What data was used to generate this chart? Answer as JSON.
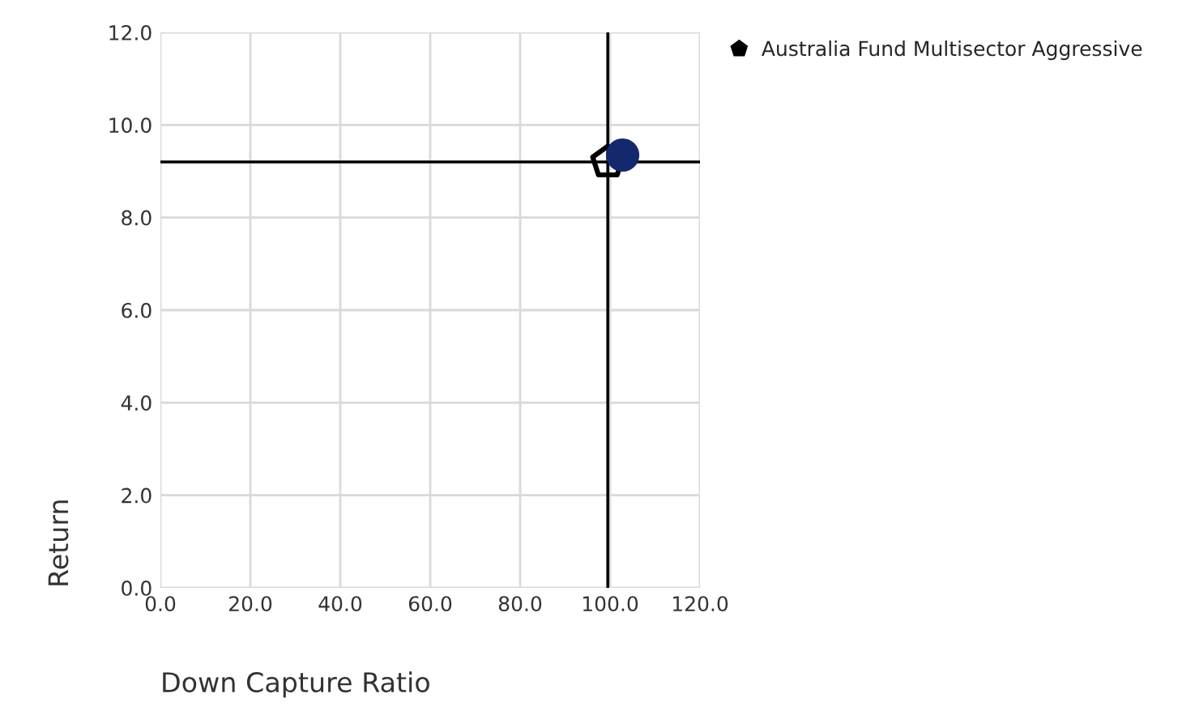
{
  "chart_data": {
    "type": "scatter",
    "xlabel": "Down Capture Ratio",
    "ylabel": "Return",
    "series": [
      {
        "color": "#14286e",
        "marker": "circle",
        "x": [
          102.8
        ],
        "values": [
          9.35
        ]
      },
      {
        "name": "Australia Fund Multisector Aggressive",
        "color": "#000000",
        "x": [
          99.5
        ],
        "values": [
          9.2
        ]
      }
    ],
    "xlim": [
      0,
      120
    ],
    "xticks": [
      {
        "value": 0,
        "label": "0.0"
      },
      {
        "value": 20,
        "label": "20.0"
      },
      {
        "value": 40,
        "label": "40.0"
      },
      {
        "value": 60,
        "label": "60.0"
      },
      {
        "value": 80,
        "label": "80.0"
      },
      {
        "value": 100,
        "label": "100.0"
      },
      {
        "value": 120,
        "label": "120.0"
      }
    ],
    "ylim": [
      0,
      12
    ],
    "yticks": [
      {
        "value": 0,
        "label": "0.0"
      },
      {
        "value": 2,
        "label": "2.0"
      },
      {
        "value": 4,
        "label": "4.0"
      },
      {
        "value": 6,
        "label": "6.0"
      },
      {
        "value": 8,
        "label": "8.0"
      },
      {
        "value": 10,
        "label": "10.0"
      },
      {
        "value": 12,
        "label": "12.0"
      }
    ],
    "ref_lines": [
      {
        "axis": "x",
        "value": 99.5,
        "color": "#000000"
      },
      {
        "axis": "y",
        "value": 9.2,
        "color": "#000000"
      }
    ],
    "grid": true,
    "legend": "top right"
  }
}
